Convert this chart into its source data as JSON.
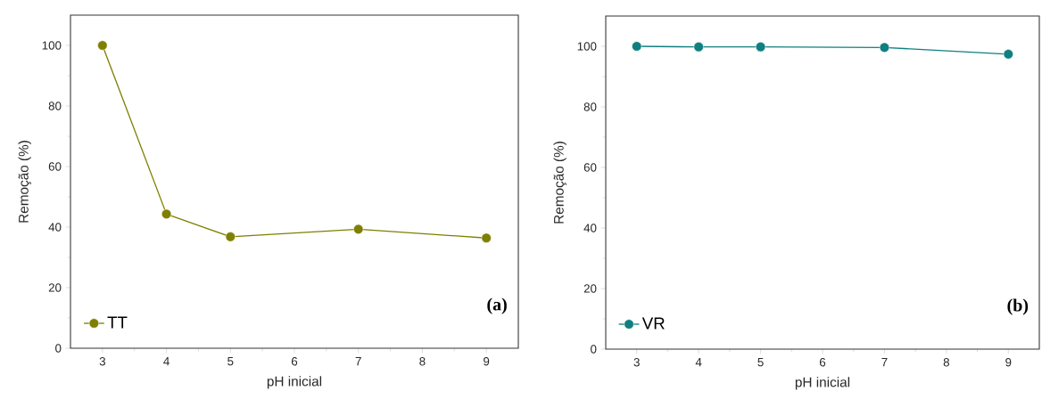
{
  "chart_data": [
    {
      "type": "line",
      "xlabel": "pH inicial",
      "ylabel": "Remoção (%)",
      "x": [
        3,
        4,
        5,
        7,
        9
      ],
      "series": [
        {
          "name": "TT",
          "color": "#7f7f00",
          "values": [
            100,
            44.3,
            36.8,
            39.3,
            36.4
          ]
        }
      ],
      "xlim": [
        2.5,
        9.5
      ],
      "ylim": [
        0,
        110
      ],
      "xticks": [
        3,
        4,
        5,
        6,
        7,
        8,
        9
      ],
      "yticks": [
        0,
        20,
        40,
        60,
        80,
        100
      ],
      "legend": "bottom left",
      "marker": "circle",
      "annotations": [
        "(a)"
      ]
    },
    {
      "type": "line",
      "xlabel": "pH inicial",
      "ylabel": "Remoção (%)",
      "x": [
        3,
        4,
        5,
        7,
        9
      ],
      "series": [
        {
          "name": "VR",
          "color": "#0f7f7f",
          "values": [
            100,
            99.8,
            99.8,
            99.6,
            97.4
          ]
        }
      ],
      "xlim": [
        2.5,
        9.5
      ],
      "ylim": [
        0,
        110
      ],
      "xticks": [
        3,
        4,
        5,
        6,
        7,
        8,
        9
      ],
      "yticks": [
        0,
        20,
        40,
        60,
        80,
        100
      ],
      "legend": "bottom left",
      "marker": "circle",
      "annotations": [
        "(b)"
      ]
    }
  ]
}
